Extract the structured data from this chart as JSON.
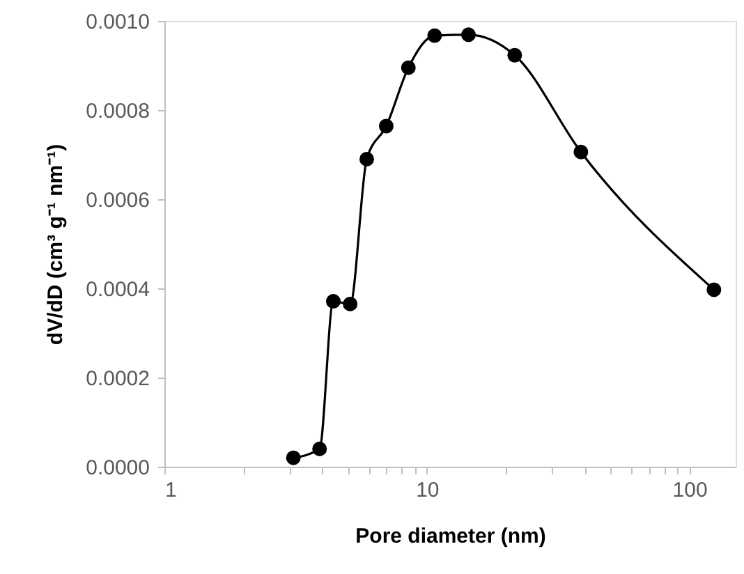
{
  "chart_data": {
    "type": "line",
    "xlabel": "Pore diameter (nm)",
    "ylabel": "dV/dD (cm³ g⁻¹ nm⁻¹)",
    "log": "x",
    "grid": false,
    "marker": "circle",
    "line_style": "solid",
    "xlim": [
      1,
      150
    ],
    "ylim": [
      0,
      0.001
    ],
    "xticks": [
      1,
      {
        "value": 2,
        "label": null
      },
      {
        "value": 3,
        "label": null
      },
      {
        "value": 4,
        "label": null
      },
      {
        "value": 5,
        "label": null
      },
      {
        "value": 6,
        "label": null
      },
      {
        "value": 7,
        "label": null
      },
      {
        "value": 8,
        "label": null
      },
      {
        "value": 9,
        "label": null
      },
      10,
      {
        "value": 20,
        "label": null
      },
      {
        "value": 30,
        "label": null
      },
      {
        "value": 40,
        "label": null
      },
      {
        "value": 50,
        "label": null
      },
      {
        "value": 60,
        "label": null
      },
      {
        "value": 70,
        "label": null
      },
      {
        "value": 80,
        "label": null
      },
      {
        "value": 90,
        "label": null
      },
      100
    ],
    "yticks": [
      {
        "value": 0,
        "label": "0.0000"
      },
      {
        "value": 0.0002,
        "label": "0.0002"
      },
      {
        "value": 0.0004,
        "label": "0.0004"
      },
      {
        "value": 0.0006,
        "label": "0.0006"
      },
      {
        "value": 0.0008,
        "label": "0.0008"
      },
      {
        "value": 0.001,
        "label": "0.0010"
      }
    ],
    "series": [
      {
        "color": "#000000",
        "x": [
          3.1,
          3.9,
          4.4,
          5.1,
          5.9,
          7.0,
          8.5,
          10.7,
          14.4,
          21.6,
          38.6,
          124
        ],
        "values": [
          2e-05,
          4e-05,
          0.000371,
          0.000365,
          0.00069,
          0.000764,
          0.000895,
          0.000967,
          0.000969,
          0.000923,
          0.000706,
          0.000397
        ]
      }
    ]
  }
}
